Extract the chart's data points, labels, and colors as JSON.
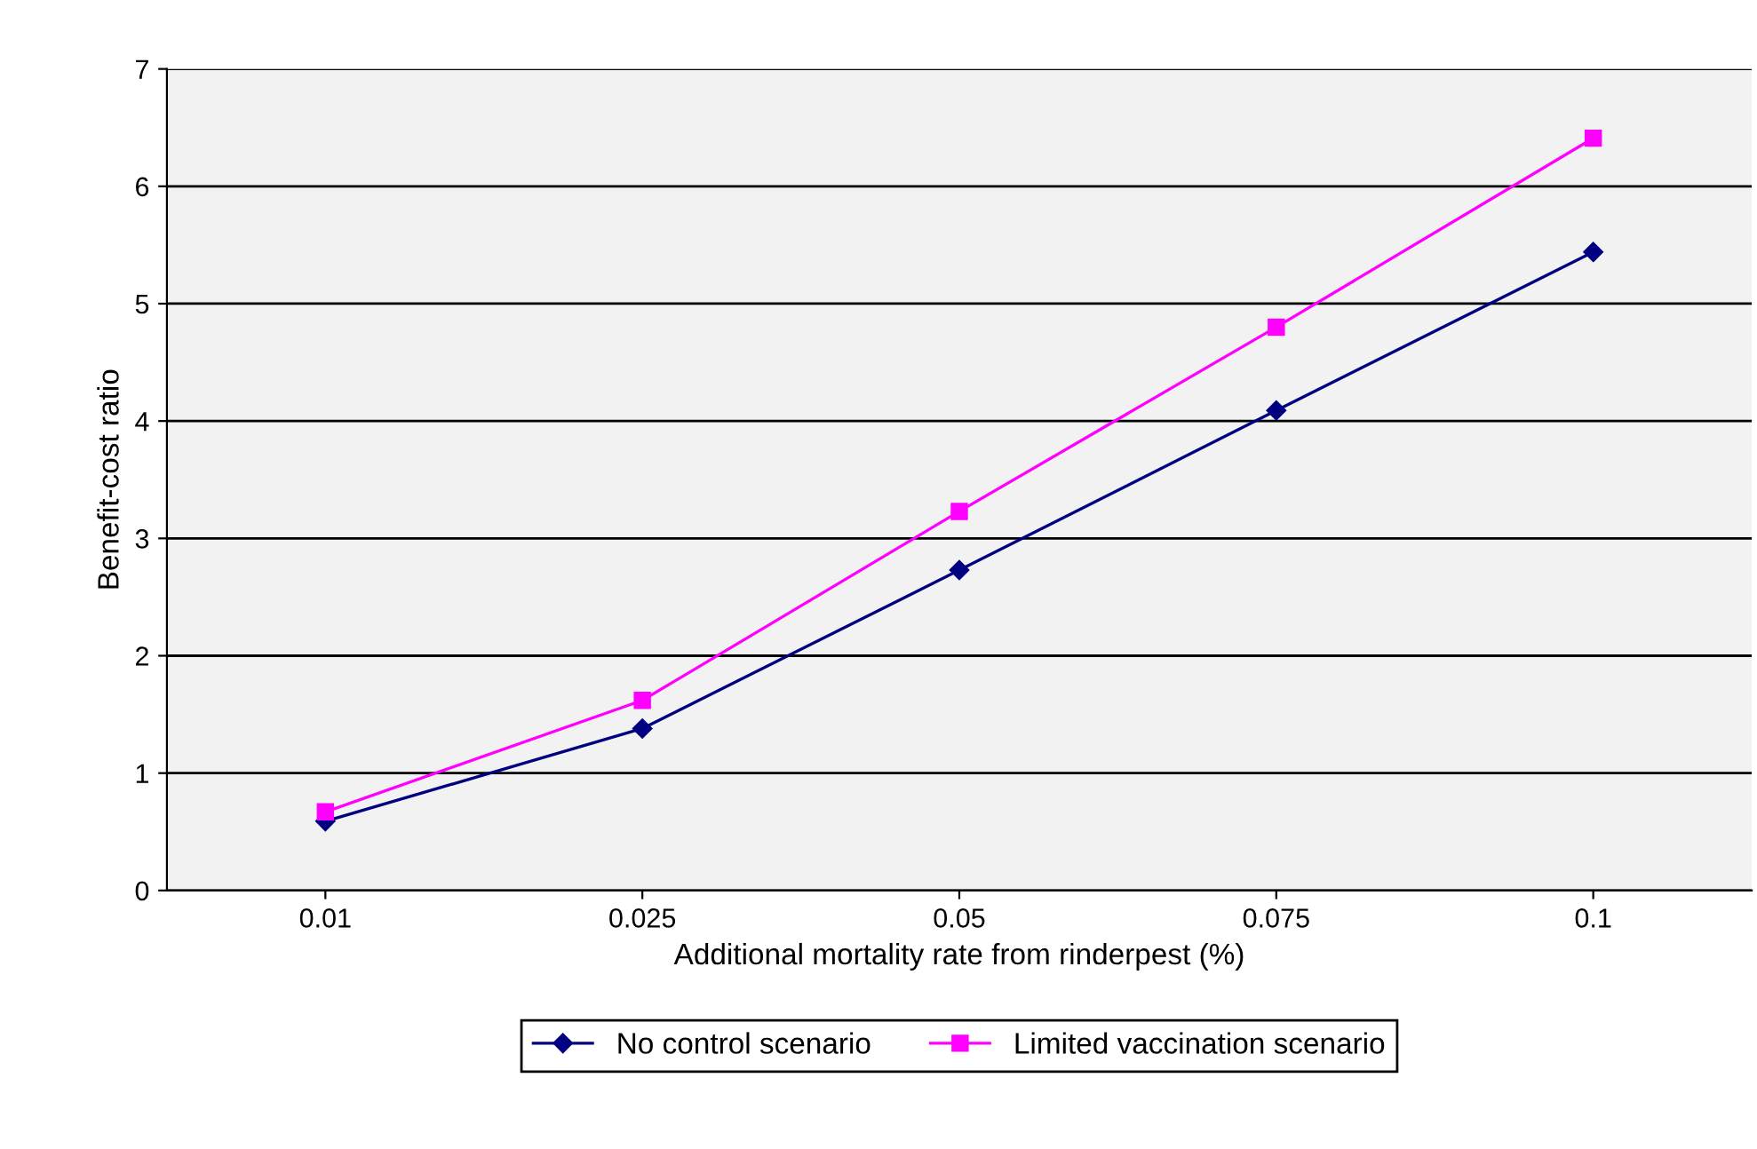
{
  "chart_data": {
    "type": "line",
    "xlabel": "Additional mortality rate from rinderpest (%)",
    "ylabel": "Benefit-cost ratio",
    "categories": [
      "0.01",
      "0.025",
      "0.05",
      "0.075",
      "0.1"
    ],
    "series": [
      {
        "name": "No control scenario",
        "color": "#000080",
        "values": [
          0.59,
          1.38,
          2.73,
          4.09,
          5.44
        ],
        "marker": "diamond"
      },
      {
        "name": "Limited vaccination scenario",
        "color": "#ff00ff",
        "values": [
          0.67,
          1.62,
          3.23,
          4.8,
          6.41
        ],
        "marker": "square"
      }
    ],
    "ylim": [
      0,
      7
    ],
    "yticks": [
      0,
      1,
      2,
      3,
      4,
      5,
      6,
      7
    ],
    "grid": "y",
    "legend": "bottom",
    "line_style": "solid"
  }
}
